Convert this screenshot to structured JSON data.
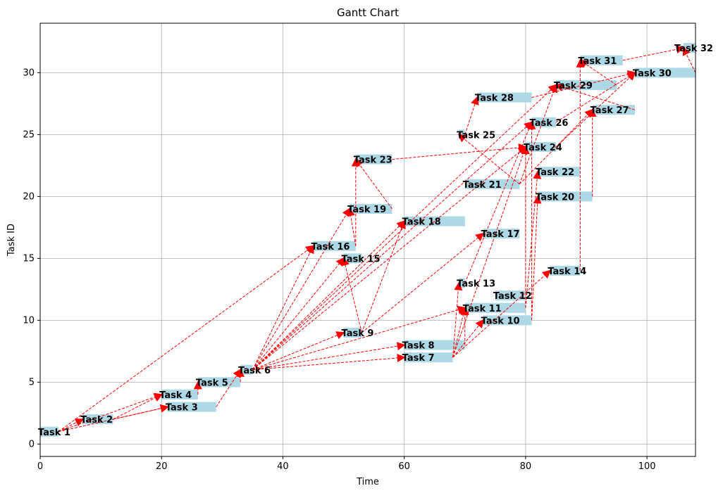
{
  "chart_data": {
    "type": "gantt",
    "title": "Gantt Chart",
    "xlabel": "Time",
    "ylabel": "Task ID",
    "xlim": [
      0,
      108
    ],
    "ylim": [
      -1,
      34
    ],
    "xticks": [
      0,
      20,
      40,
      60,
      80,
      100
    ],
    "yticks": [
      0,
      5,
      10,
      15,
      20,
      25,
      30
    ],
    "grid": true,
    "bar_color": "#add8e6",
    "dependency_color": "#ff0000",
    "tasks": [
      {
        "id": 1,
        "name": "Task 1",
        "start": 0,
        "end": 3
      },
      {
        "id": 2,
        "name": "Task 2",
        "start": 7,
        "end": 12
      },
      {
        "id": 3,
        "name": "Task 3",
        "start": 21,
        "end": 29
      },
      {
        "id": 4,
        "name": "Task 4",
        "start": 20,
        "end": 26
      },
      {
        "id": 5,
        "name": "Task 5",
        "start": 26,
        "end": 33
      },
      {
        "id": 6,
        "name": "Task 6",
        "start": 33,
        "end": 35
      },
      {
        "id": 7,
        "name": "Task 7",
        "start": 60,
        "end": 68
      },
      {
        "id": 8,
        "name": "Task 8",
        "start": 60,
        "end": 70
      },
      {
        "id": 9,
        "name": "Task 9",
        "start": 50,
        "end": 53
      },
      {
        "id": 10,
        "name": "Task 10",
        "start": 73,
        "end": 81
      },
      {
        "id": 11,
        "name": "Task 11",
        "start": 70,
        "end": 80
      },
      {
        "id": 12,
        "name": "Task 12",
        "start": 75,
        "end": 80
      },
      {
        "id": 13,
        "name": "Task 13",
        "start": 69,
        "end": 70
      },
      {
        "id": 14,
        "name": "Task 14",
        "start": 84,
        "end": 89
      },
      {
        "id": 15,
        "name": "Task 15",
        "start": 50,
        "end": 53
      },
      {
        "id": 16,
        "name": "Task 16",
        "start": 45,
        "end": 52
      },
      {
        "id": 17,
        "name": "Task 17",
        "start": 73,
        "end": 79
      },
      {
        "id": 18,
        "name": "Task 18",
        "start": 60,
        "end": 70
      },
      {
        "id": 19,
        "name": "Task 19",
        "start": 51,
        "end": 58
      },
      {
        "id": 20,
        "name": "Task 20",
        "start": 82,
        "end": 91
      },
      {
        "id": 21,
        "name": "Task 21",
        "start": 70,
        "end": 79
      },
      {
        "id": 22,
        "name": "Task 22",
        "start": 82,
        "end": 89
      },
      {
        "id": 23,
        "name": "Task 23",
        "start": 52,
        "end": 58
      },
      {
        "id": 24,
        "name": "Task 24",
        "start": 80,
        "end": 85
      },
      {
        "id": 25,
        "name": "Task 25",
        "start": 69,
        "end": 70
      },
      {
        "id": 26,
        "name": "Task 26",
        "start": 81,
        "end": 85
      },
      {
        "id": 27,
        "name": "Task 27",
        "start": 91,
        "end": 98
      },
      {
        "id": 28,
        "name": "Task 28",
        "start": 72,
        "end": 81
      },
      {
        "id": 29,
        "name": "Task 29",
        "start": 85,
        "end": 95
      },
      {
        "id": 30,
        "name": "Task 30",
        "start": 98,
        "end": 108
      },
      {
        "id": 31,
        "name": "Task 31",
        "start": 89,
        "end": 96
      },
      {
        "id": 32,
        "name": "Task 32",
        "start": 106,
        "end": 108
      }
    ],
    "dependencies": [
      [
        1,
        2
      ],
      [
        1,
        3
      ],
      [
        1,
        4
      ],
      [
        1,
        16
      ],
      [
        2,
        3
      ],
      [
        2,
        4
      ],
      [
        3,
        6
      ],
      [
        4,
        5
      ],
      [
        5,
        6
      ],
      [
        6,
        7
      ],
      [
        6,
        8
      ],
      [
        6,
        11
      ],
      [
        6,
        15
      ],
      [
        6,
        16
      ],
      [
        6,
        18
      ],
      [
        6,
        19
      ],
      [
        6,
        24
      ],
      [
        6,
        26
      ],
      [
        6,
        29
      ],
      [
        9,
        15
      ],
      [
        9,
        18
      ],
      [
        9,
        17
      ],
      [
        16,
        19
      ],
      [
        16,
        23
      ],
      [
        19,
        23
      ],
      [
        23,
        24
      ],
      [
        7,
        10
      ],
      [
        7,
        11
      ],
      [
        7,
        13
      ],
      [
        7,
        14
      ],
      [
        7,
        24
      ],
      [
        8,
        11
      ],
      [
        10,
        20
      ],
      [
        10,
        26
      ],
      [
        11,
        22
      ],
      [
        11,
        24
      ],
      [
        21,
        29
      ],
      [
        21,
        27
      ],
      [
        20,
        27
      ],
      [
        14,
        31
      ],
      [
        13,
        26
      ],
      [
        25,
        28
      ],
      [
        29,
        31
      ],
      [
        31,
        32
      ],
      [
        30,
        32
      ],
      [
        27,
        29
      ],
      [
        24,
        30
      ],
      [
        26,
        30
      ],
      [
        28,
        30
      ],
      [
        6,
        9
      ],
      [
        21,
        25
      ]
    ]
  }
}
